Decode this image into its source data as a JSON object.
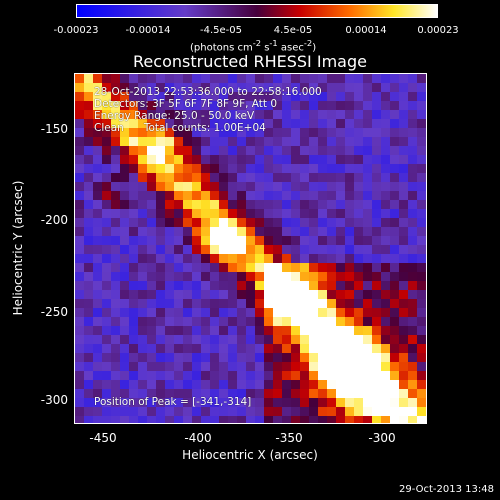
{
  "colorbar": {
    "ticks": [
      "-0.00023",
      "-0.00014",
      "-4.5e-05",
      "4.5e-05",
      "0.00014",
      "0.00023"
    ],
    "units_html": "(photons cm<sup>-2</sup> s<sup>-1</sup> asec<sup>-2</sup>)"
  },
  "title": "Reconstructed RHESSI Image",
  "info": {
    "time": "28-Oct-2013 22:53:36.000 to 22:58:16.000",
    "detectors": "Detectors: 3F 5F 6F 7F 8F 9F, Att 0",
    "energy": "Energy Range: 25.0 - 50.0 keV",
    "clean": "Clean      Total counts: 1.00E+04",
    "peak": "Position of Peak = [-341,-314]"
  },
  "axes": {
    "xlabel": "Heliocentric X (arcsec)",
    "ylabel": "Heliocentric Y (arcsec)",
    "xticks": [
      "-450",
      "-400",
      "-350",
      "-300"
    ],
    "yticks": [
      "-150",
      "-200",
      "-250",
      "-300"
    ],
    "xrange": [
      -467,
      -281
    ],
    "yrange": [
      -316,
      -129
    ]
  },
  "timestamp": "29-Oct-2013 13:48",
  "colors": {
    "colormap": "blue-purple-red-yellow-white"
  }
}
